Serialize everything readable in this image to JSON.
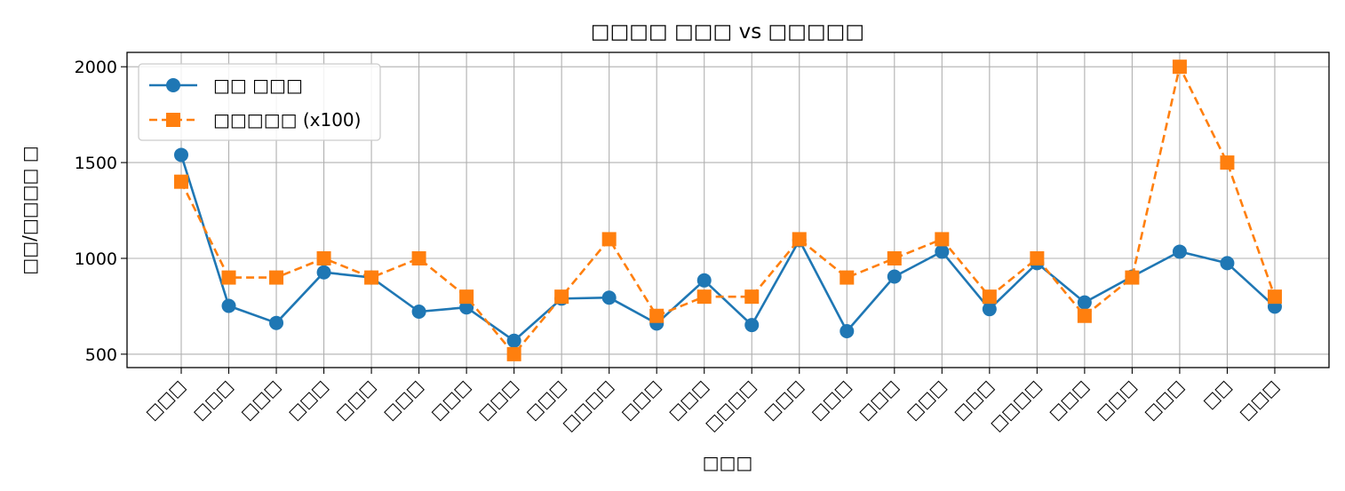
{
  "chart_data": {
    "type": "line",
    "title": "□□□□ □□□ vs □□□□□",
    "xlabel": "□□□",
    "ylabel": "□□/□□□□ □",
    "categories": [
      "□□□",
      "□□□",
      "□□□",
      "□□□",
      "□□□",
      "□□□",
      "□□□",
      "□□□",
      "□□□",
      "□□□□",
      "□□□",
      "□□□",
      "□□□□",
      "□□□",
      "□□□",
      "□□□",
      "□□□",
      "□□□",
      "□□□□",
      "□□□",
      "□□□",
      "□□□",
      "□□",
      "□□□"
    ],
    "series": [
      {
        "name": "□□ □□□",
        "style": "solid",
        "marker": "circle",
        "color": "#1f77b4",
        "values": [
          1540,
          752,
          663,
          927,
          900,
          722,
          744,
          570,
          790,
          795,
          660,
          885,
          652,
          1095,
          620,
          905,
          1035,
          735,
          975,
          770,
          905,
          1035,
          975,
          748
        ]
      },
      {
        "name": "□□□□□ (x100)",
        "style": "dashed",
        "marker": "square",
        "color": "#ff7f0e",
        "values": [
          1400,
          900,
          900,
          1000,
          900,
          1000,
          800,
          500,
          800,
          1100,
          700,
          800,
          800,
          1100,
          900,
          1000,
          1100,
          800,
          1000,
          700,
          900,
          2000,
          1500,
          800
        ]
      }
    ],
    "yticks": [
      500,
      1000,
      1500,
      2000
    ],
    "ylim": [
      430,
      2075
    ],
    "grid": true,
    "legend_position": "top-left"
  }
}
